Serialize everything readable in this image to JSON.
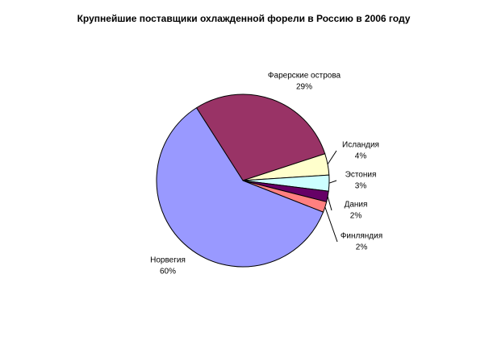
{
  "chart_data": {
    "type": "pie",
    "title": "Крупнейшие поставщики охлажденной форели в Россию в 2006 году",
    "categories": [
      "Фарерские острова",
      "Исландия",
      "Эстония",
      "Дания",
      "Финляндия",
      "Норвегия"
    ],
    "values": [
      29,
      4,
      3,
      2,
      2,
      60
    ],
    "value_labels": [
      "29%",
      "4%",
      "3%",
      "2%",
      "2%",
      "60%"
    ],
    "colors": [
      "#993366",
      "#ffffcc",
      "#ccffff",
      "#660066",
      "#ff8080",
      "#9999ff"
    ]
  }
}
